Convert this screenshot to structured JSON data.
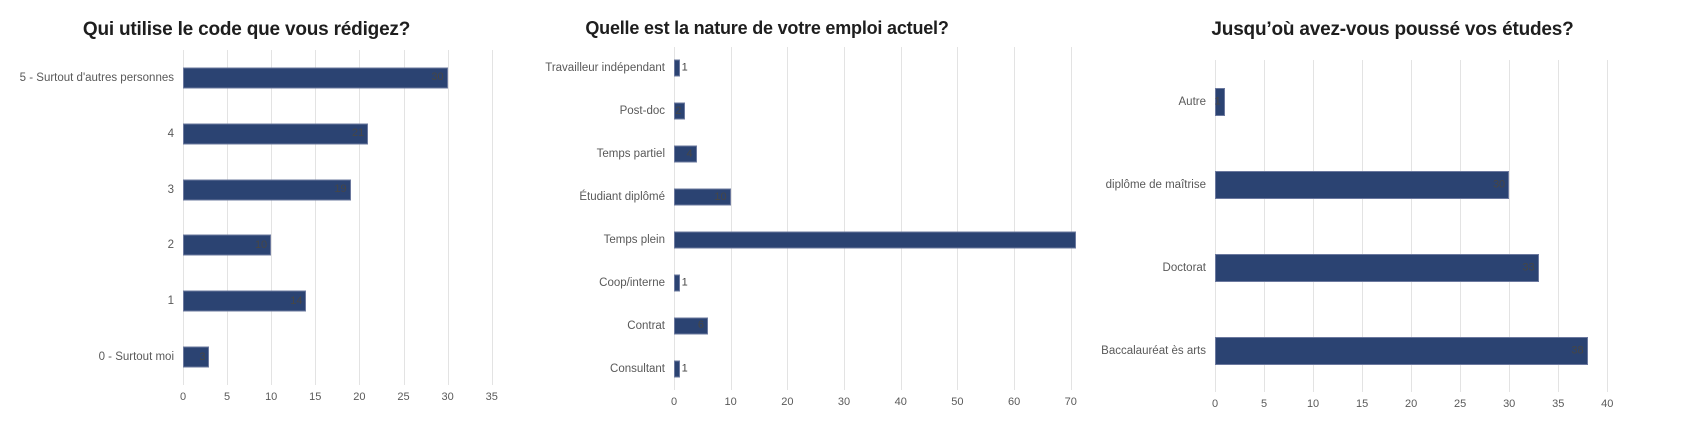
{
  "page": {
    "background": "#ffffff"
  },
  "colors": {
    "bar": "#2b4372",
    "bar_border": "rgba(150,156,188,0.6)",
    "gridline": "#e3e3e3",
    "axis_text": "#595959",
    "title_text": "#1e1e1e",
    "data_label": "#464646"
  },
  "chart_data": [
    {
      "type": "bar",
      "orientation": "horizontal",
      "title": "Qui utilise le code que vous rédigez?",
      "categories": [
        "5 - Surtout d'autres personnes",
        "4",
        "3",
        "2",
        "1",
        "0 - Surtout moi"
      ],
      "values": [
        30,
        21,
        19,
        10,
        14,
        3
      ],
      "data_labels": [
        "30",
        "21",
        "19",
        "10",
        "14",
        "3"
      ],
      "data_label_positions": [
        "inside-end",
        "inside-end",
        "inside-end",
        "inside-end",
        "inside-end",
        "inside-end"
      ],
      "xticks": [
        0,
        5,
        10,
        15,
        20,
        25,
        30,
        35
      ],
      "xlim": [
        0,
        35.6
      ],
      "xlabel": "",
      "ylabel": "",
      "grid": true,
      "legend": false
    },
    {
      "type": "bar",
      "orientation": "horizontal",
      "title": "Quelle est la nature de votre emploi actuel?",
      "categories": [
        "Travailleur indépendant",
        "Post-doc",
        "Temps partiel",
        "Étudiant diplômé",
        "Temps plein",
        "Coop/interne",
        "Contrat",
        "Consultant"
      ],
      "values": [
        1,
        2,
        4,
        10,
        71,
        1,
        6,
        1
      ],
      "data_labels": [
        "1",
        "2",
        "4",
        "10",
        "",
        "1",
        "6",
        "1"
      ],
      "data_label_positions": [
        "outside-end",
        "inside-end",
        "inside-end",
        "inside-end",
        "none",
        "outside-end",
        "inside-end",
        "outside-end"
      ],
      "xticks": [
        0,
        10,
        20,
        30,
        40,
        50,
        60,
        70
      ],
      "xlim": [
        0,
        71.1
      ],
      "xlabel": "",
      "ylabel": "",
      "grid": true,
      "legend": false
    },
    {
      "type": "bar",
      "orientation": "horizontal",
      "title": "Jusqu’où avez-vous poussé vos études?",
      "categories": [
        "Autre",
        "diplôme de maîtrise",
        "Doctorat",
        "Baccalauréat ès arts"
      ],
      "values": [
        1,
        30,
        33,
        38
      ],
      "data_labels": [
        "1",
        "30",
        "33",
        "38"
      ],
      "data_label_positions": [
        "inside-end",
        "inside-end",
        "inside-end",
        "inside-end"
      ],
      "xticks": [
        0,
        5,
        10,
        15,
        20,
        25,
        30,
        35,
        40
      ],
      "xlim": [
        0,
        41.3
      ],
      "xlabel": "",
      "ylabel": "",
      "grid": true,
      "legend": false
    }
  ]
}
